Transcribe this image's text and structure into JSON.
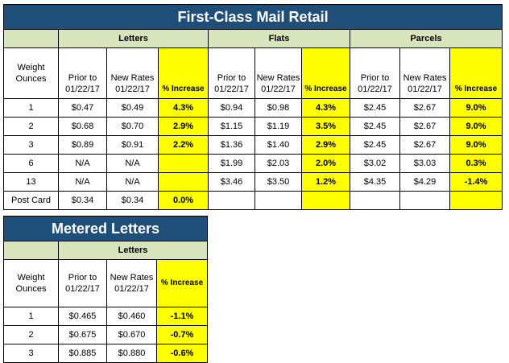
{
  "retail": {
    "title": "First-Class Mail Retail",
    "groups": {
      "letters": "Letters",
      "flats": "Flats",
      "parcels": "Parcels"
    },
    "headers": {
      "weight": "Weight Ounces",
      "prior": "Prior to 01/22/17",
      "new": "New Rates 01/22/17",
      "increase": "% Increase"
    },
    "rows": [
      {
        "weight": "1",
        "l_prior": "$0.47",
        "l_new": "$0.49",
        "l_pct": "4.3%",
        "f_prior": "$0.94",
        "f_new": "$0.98",
        "f_pct": "4.3%",
        "p_prior": "$2.45",
        "p_new": "$2.67",
        "p_pct": "9.0%"
      },
      {
        "weight": "2",
        "l_prior": "$0.68",
        "l_new": "$0.70",
        "l_pct": "2.9%",
        "f_prior": "$1.15",
        "f_new": "$1.19",
        "f_pct": "3.5%",
        "p_prior": "$2.45",
        "p_new": "$2.67",
        "p_pct": "9.0%"
      },
      {
        "weight": "3",
        "l_prior": "$0.89",
        "l_new": "$0.91",
        "l_pct": "2.2%",
        "f_prior": "$1.36",
        "f_new": "$1.40",
        "f_pct": "2.9%",
        "p_prior": "$2.45",
        "p_new": "$2.67",
        "p_pct": "9.0%"
      },
      {
        "weight": "6",
        "l_prior": "N/A",
        "l_new": "N/A",
        "l_pct": "",
        "f_prior": "$1.99",
        "f_new": "$2.03",
        "f_pct": "2.0%",
        "p_prior": "$3.02",
        "p_new": "$3.03",
        "p_pct": "0.3%"
      },
      {
        "weight": "13",
        "l_prior": "N/A",
        "l_new": "N/A",
        "l_pct": "",
        "f_prior": "$3.46",
        "f_new": "$3.50",
        "f_pct": "1.2%",
        "p_prior": "$4.35",
        "p_new": "$4.29",
        "p_pct": "-1.4%"
      },
      {
        "weight": "Post Card",
        "l_prior": "$0.34",
        "l_new": "$0.34",
        "l_pct": "0.0%",
        "f_prior": "",
        "f_new": "",
        "f_pct": "",
        "p_prior": "",
        "p_new": "",
        "p_pct": ""
      }
    ]
  },
  "metered": {
    "title": "Metered Letters",
    "group": "Letters",
    "headers": {
      "weight": "Weight Ounces",
      "prior": "Prior to 01/22/17",
      "new": "New Rates 01/22/17",
      "increase": "% Increase"
    },
    "rows": [
      {
        "weight": "1",
        "prior": "$0.465",
        "new": "$0.460",
        "pct": "-1.1%"
      },
      {
        "weight": "2",
        "prior": "$0.675",
        "new": "$0.670",
        "pct": "-0.7%"
      },
      {
        "weight": "3",
        "prior": "$0.885",
        "new": "$0.880",
        "pct": "-0.6%"
      }
    ]
  },
  "colors": {
    "title_bg": "#1f4e79",
    "group_bg": "#d8e4bc",
    "highlight": "#ffff00"
  }
}
